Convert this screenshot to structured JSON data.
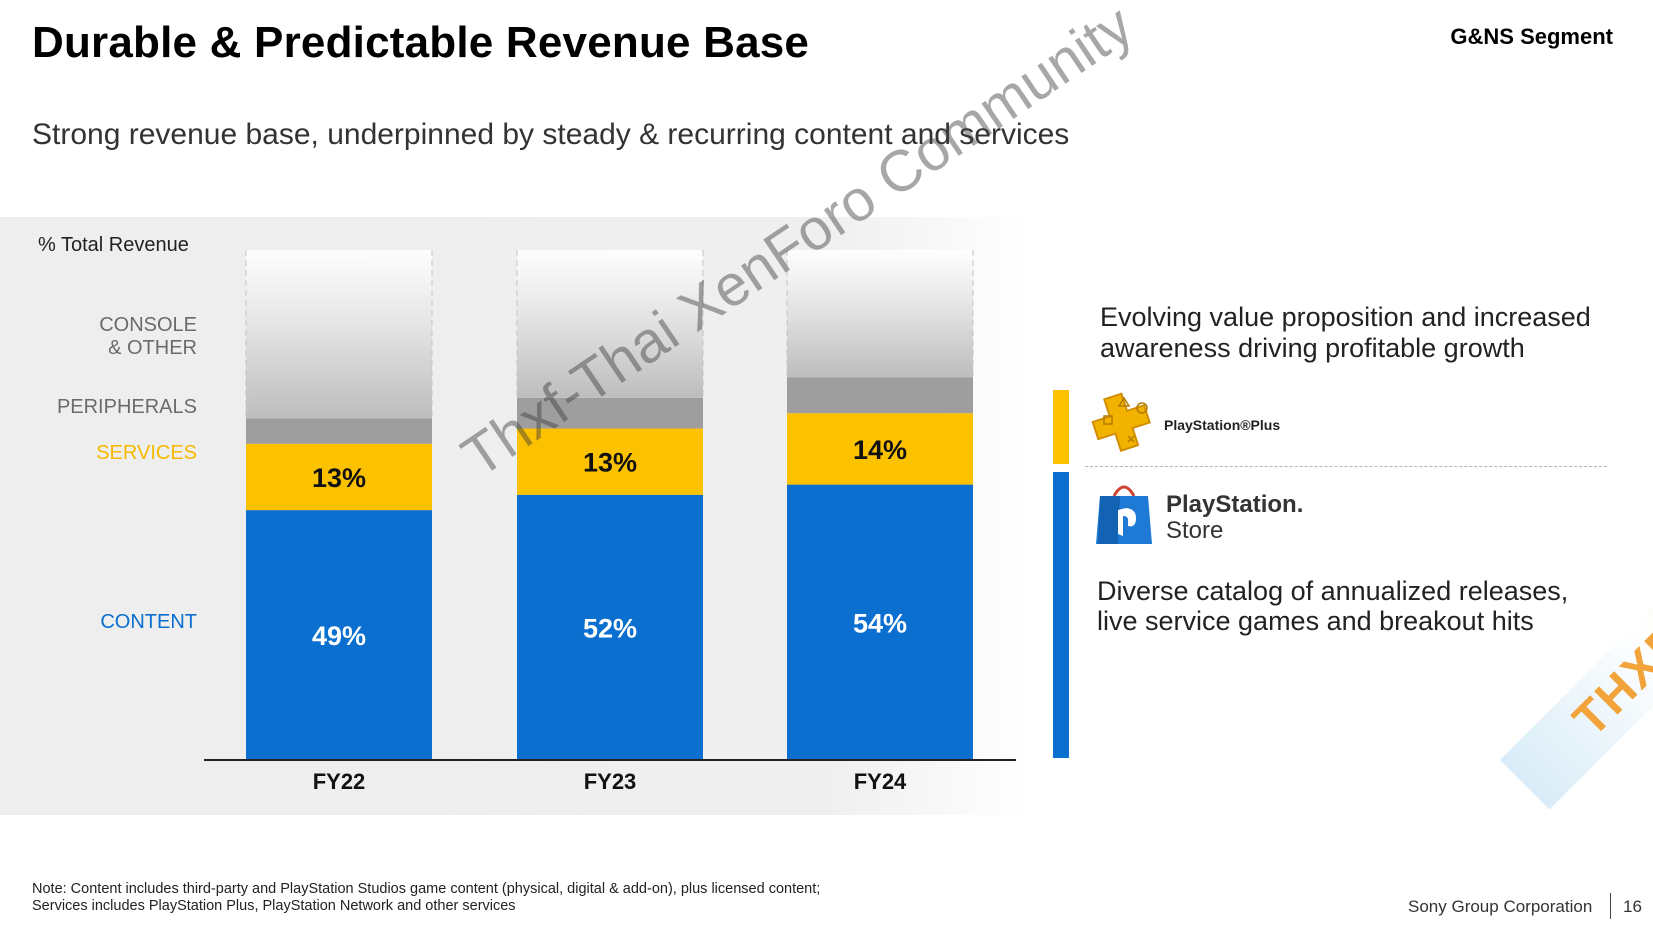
{
  "header": {
    "title": "Durable & Predictable Revenue Base",
    "segment": "G&NS Segment",
    "subtitle": "Strong revenue base, underpinned by steady & recurring content and services"
  },
  "chart_data": {
    "type": "bar",
    "stacked": true,
    "ylabel": "% Total Revenue",
    "categories": [
      "FY22",
      "FY23",
      "FY24"
    ],
    "series": [
      {
        "name": "CONTENT",
        "values": [
          49,
          52,
          54
        ],
        "color": "#0a6fcf",
        "labels": [
          "49%",
          "52%",
          "54%"
        ]
      },
      {
        "name": "SERVICES",
        "values": [
          13,
          13,
          14
        ],
        "color": "#fcc200",
        "labels": [
          "13%",
          "13%",
          "14%"
        ]
      },
      {
        "name": "PERIPHERALS",
        "values": [
          5,
          6,
          7
        ],
        "color": "#9e9e9e",
        "labels": [
          "",
          "",
          ""
        ]
      },
      {
        "name": "CONSOLE & OTHER",
        "values": [
          33,
          29,
          25
        ],
        "color": "#d6d6d6",
        "labels": [
          "",
          "",
          ""
        ]
      }
    ],
    "legend_labels": {
      "console": [
        "CONSOLE",
        "& OTHER"
      ],
      "peripherals": "PERIPHERALS",
      "services": "SERVICES",
      "content": "CONTENT"
    },
    "legend_colors": {
      "console": "#6b6b6b",
      "peripherals": "#6b6b6b",
      "services": "#f7b800",
      "content": "#0a6fcf"
    },
    "ylim": [
      0,
      100
    ]
  },
  "right_panel": {
    "services_text": "Evolving value proposition and increased awareness driving profitable growth",
    "psplus_label": "PlayStation®Plus",
    "psplus_icon": "playstation-plus-icon",
    "psstore_label_line1": "PlayStation.",
    "psstore_label_line2": "Store",
    "psstore_icon": "playstation-store-bag-icon",
    "content_text_line1": "Diverse catalog of annualized releases,",
    "content_text_line2": "live service games and breakout hits"
  },
  "note": {
    "line1": "Note: Content includes third-party and PlayStation Studios game content (physical, digital & add-on), plus licensed content;",
    "line2": "Services includes PlayStation Plus, PlayStation Network and other services"
  },
  "footer": {
    "company": "Sony Group Corporation",
    "page": "16"
  },
  "watermarks": {
    "diagonal": "Thxf-Thai XenForo Community",
    "corner": "THXF.ORG"
  }
}
